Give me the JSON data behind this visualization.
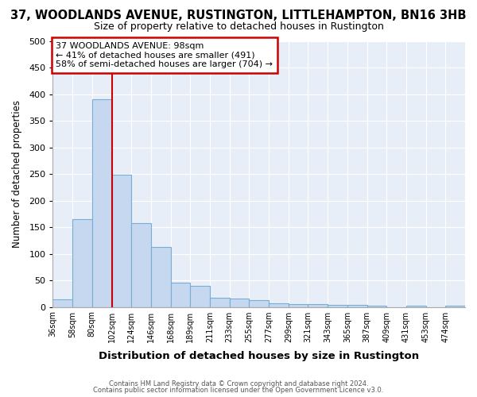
{
  "title": "37, WOODLANDS AVENUE, RUSTINGTON, LITTLEHAMPTON, BN16 3HB",
  "subtitle": "Size of property relative to detached houses in Rustington",
  "xlabel": "Distribution of detached houses by size in Rustington",
  "ylabel": "Number of detached properties",
  "bar_values": [
    14,
    165,
    390,
    248,
    157,
    113,
    45,
    40,
    17,
    15,
    13,
    7,
    6,
    6,
    4,
    4,
    3,
    0,
    2,
    0,
    2
  ],
  "all_labels": [
    "36sqm",
    "58sqm",
    "80sqm",
    "102sqm",
    "124sqm",
    "146sqm",
    "168sqm",
    "189sqm",
    "211sqm",
    "233sqm",
    "255sqm",
    "277sqm",
    "299sqm",
    "321sqm",
    "343sqm",
    "365sqm",
    "387sqm",
    "409sqm",
    "431sqm",
    "453sqm",
    "474sqm"
  ],
  "bar_color": "#c5d8f0",
  "bar_edge_color": "#7aadd4",
  "vline_x": 3,
  "vline_color": "#cc0000",
  "ylim": [
    0,
    500
  ],
  "yticks": [
    0,
    50,
    100,
    150,
    200,
    250,
    300,
    350,
    400,
    450,
    500
  ],
  "annotation_text": "37 WOODLANDS AVENUE: 98sqm\n← 41% of detached houses are smaller (491)\n58% of semi-detached houses are larger (704) →",
  "annotation_box_color": "#ffffff",
  "annotation_border_color": "#cc0000",
  "footer1": "Contains HM Land Registry data © Crown copyright and database right 2024.",
  "footer2": "Contains public sector information licensed under the Open Government Licence v3.0.",
  "plot_bg_color": "#e8eef7",
  "fig_bg_color": "#ffffff",
  "grid_color": "#ffffff",
  "title_fontsize": 10.5,
  "subtitle_fontsize": 9.0
}
